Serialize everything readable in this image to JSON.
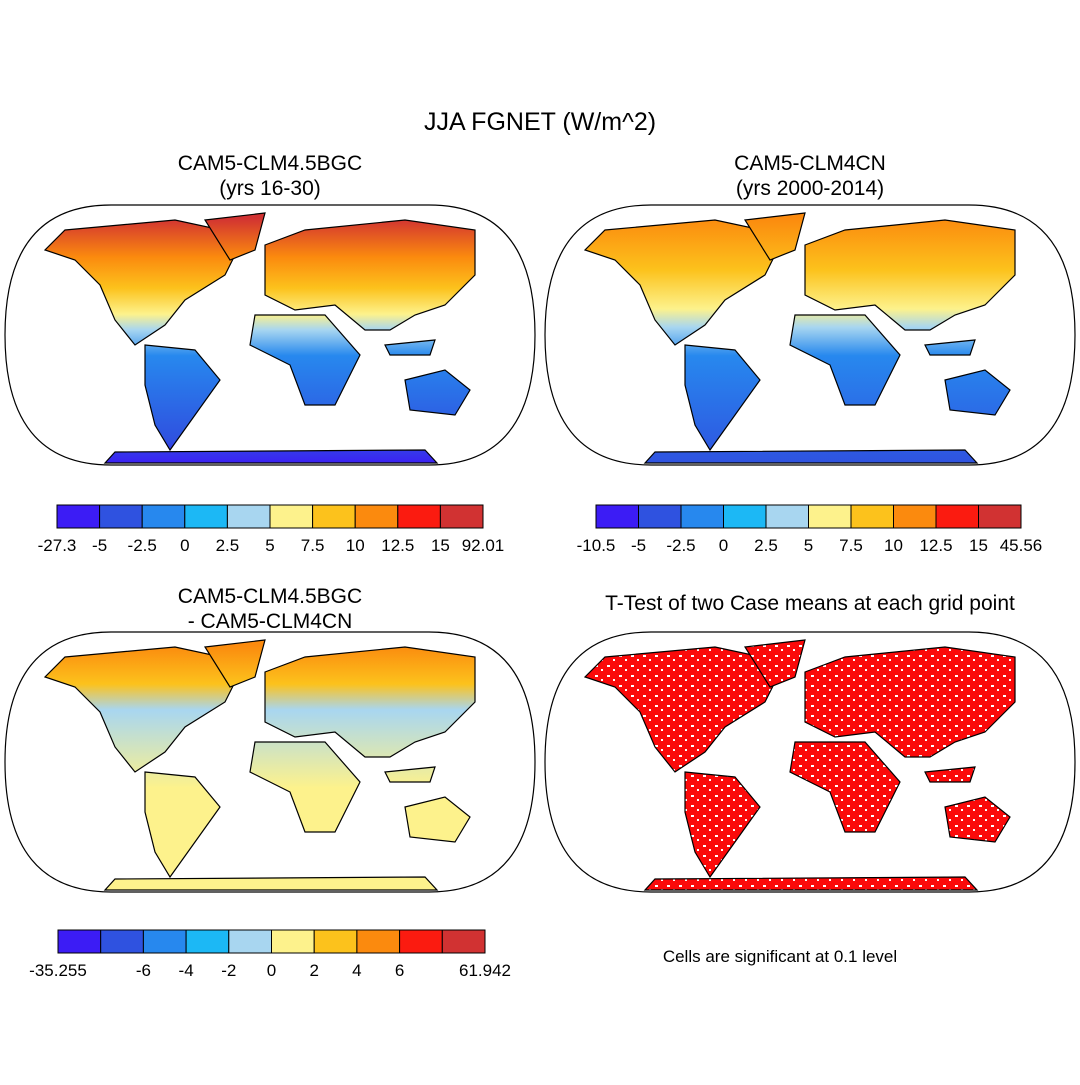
{
  "title": "JJA FGNET (W/m^2)",
  "panels": [
    {
      "title": [
        "CAM5-CLM4.5BGC",
        "(yrs 16-30)"
      ],
      "colorbar": {
        "colors": [
          "#3c1cf5",
          "#2f52e0",
          "#2788ee",
          "#1cb8f5",
          "#a8d6f0",
          "#fdf28c",
          "#fcc21c",
          "#fb8a0e",
          "#fb1b10",
          "#d13232"
        ],
        "labels": [
          -27.3,
          -5,
          -2.5,
          0,
          2.5,
          5,
          7.5,
          10,
          12.5,
          15,
          92.01
        ]
      }
    },
    {
      "title": [
        "CAM5-CLM4CN",
        "(yrs 2000-2014)"
      ],
      "colorbar": {
        "colors": [
          "#3c1cf5",
          "#2f52e0",
          "#2788ee",
          "#1cb8f5",
          "#a8d6f0",
          "#fdf28c",
          "#fcc21c",
          "#fb8a0e",
          "#fb1b10",
          "#d13232"
        ],
        "labels": [
          -10.5,
          -5,
          -2.5,
          0,
          2.5,
          5,
          7.5,
          10,
          12.5,
          15,
          45.56
        ]
      }
    },
    {
      "title": [
        "CAM5-CLM4.5BGC",
        "- CAM5-CLM4CN"
      ],
      "colorbar": {
        "colors": [
          "#3c1cf5",
          "#2f52e0",
          "#2788ee",
          "#1cb8f5",
          "#a8d6f0",
          "#fdf28c",
          "#fcc21c",
          "#fb8a0e",
          "#fb1b10",
          "#d13232"
        ],
        "labels": [
          -35.255,
          null,
          -6,
          -4,
          -2,
          0,
          2,
          4,
          6,
          null,
          61.942
        ]
      }
    },
    {
      "title": [
        "T-Test of two Case means at each grid point"
      ],
      "note": "Cells are significant at 0.1 level"
    }
  ]
}
